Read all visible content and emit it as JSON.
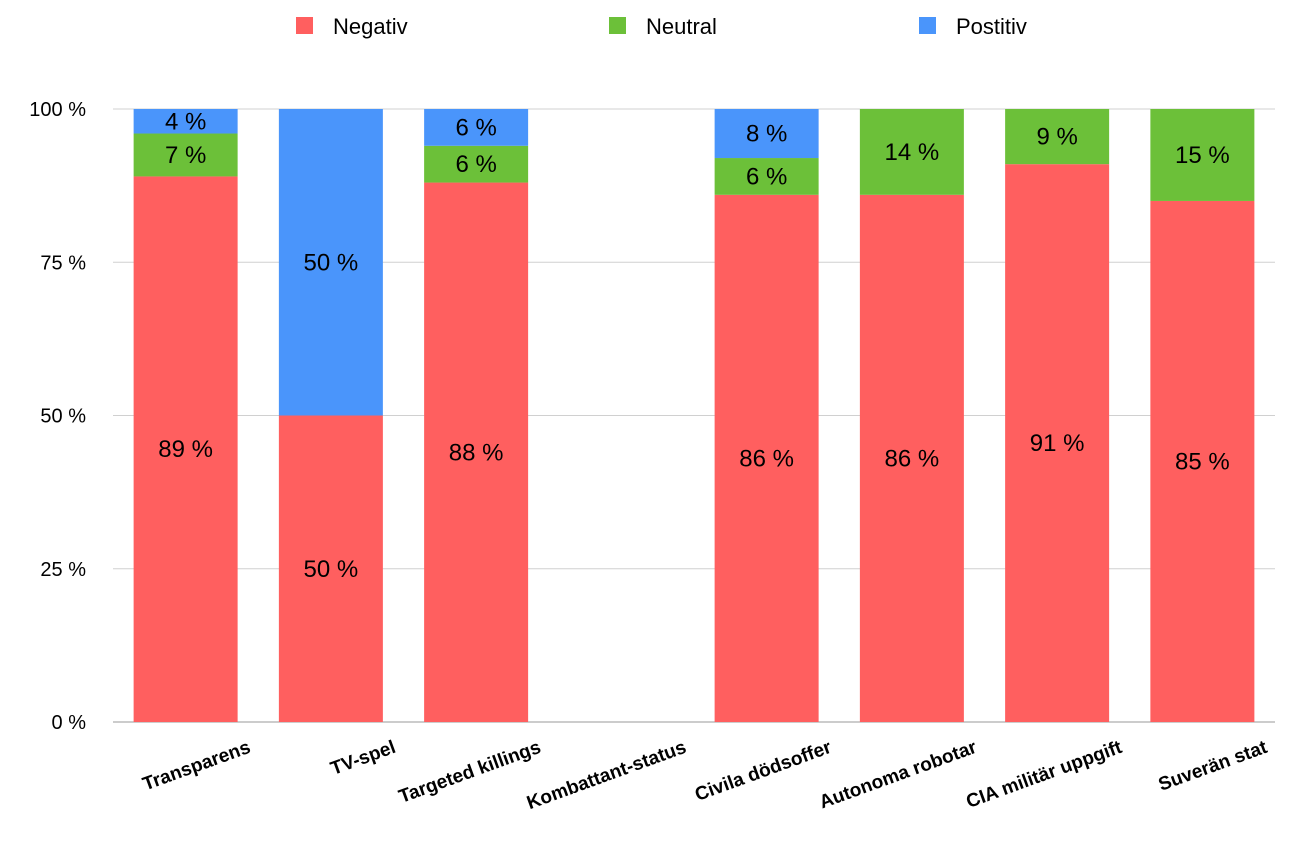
{
  "chart_data": {
    "type": "bar",
    "stacked": true,
    "categories": [
      "Transparens",
      "TV-spel",
      "Targeted killings",
      "Kombattant-status",
      "Civila dödsoffer",
      "Autonoma robotar",
      "CIA militär uppgift",
      "Suverän stat"
    ],
    "series": [
      {
        "name": "Negativ",
        "color": "#ff5f5f",
        "values": [
          89,
          50,
          88,
          0,
          86,
          86,
          91,
          85
        ],
        "labels": [
          "89 %",
          "50 %",
          "88 %",
          "",
          "86 %",
          "86 %",
          "91 %",
          "85 %"
        ]
      },
      {
        "name": "Neutral",
        "color": "#6cc039",
        "values": [
          7,
          0,
          6,
          0,
          6,
          14,
          9,
          15
        ],
        "labels": [
          "7 %",
          "",
          "6 %",
          "",
          "6 %",
          "14 %",
          "9 %",
          "15 %"
        ]
      },
      {
        "name": "Postitiv",
        "color": "#4a95fb",
        "values": [
          4,
          50,
          6,
          0,
          8,
          0,
          0,
          0
        ],
        "labels": [
          "4 %",
          "50 %",
          "6 %",
          "",
          "8 %",
          "",
          "",
          ""
        ]
      }
    ],
    "yticks": [
      0,
      25,
      50,
      75,
      100
    ],
    "ytick_labels": [
      "0 %",
      "25 %",
      "50 %",
      "75 %",
      "100 %"
    ],
    "ylim": [
      0,
      100
    ],
    "legend_position": "top",
    "grid": true
  }
}
